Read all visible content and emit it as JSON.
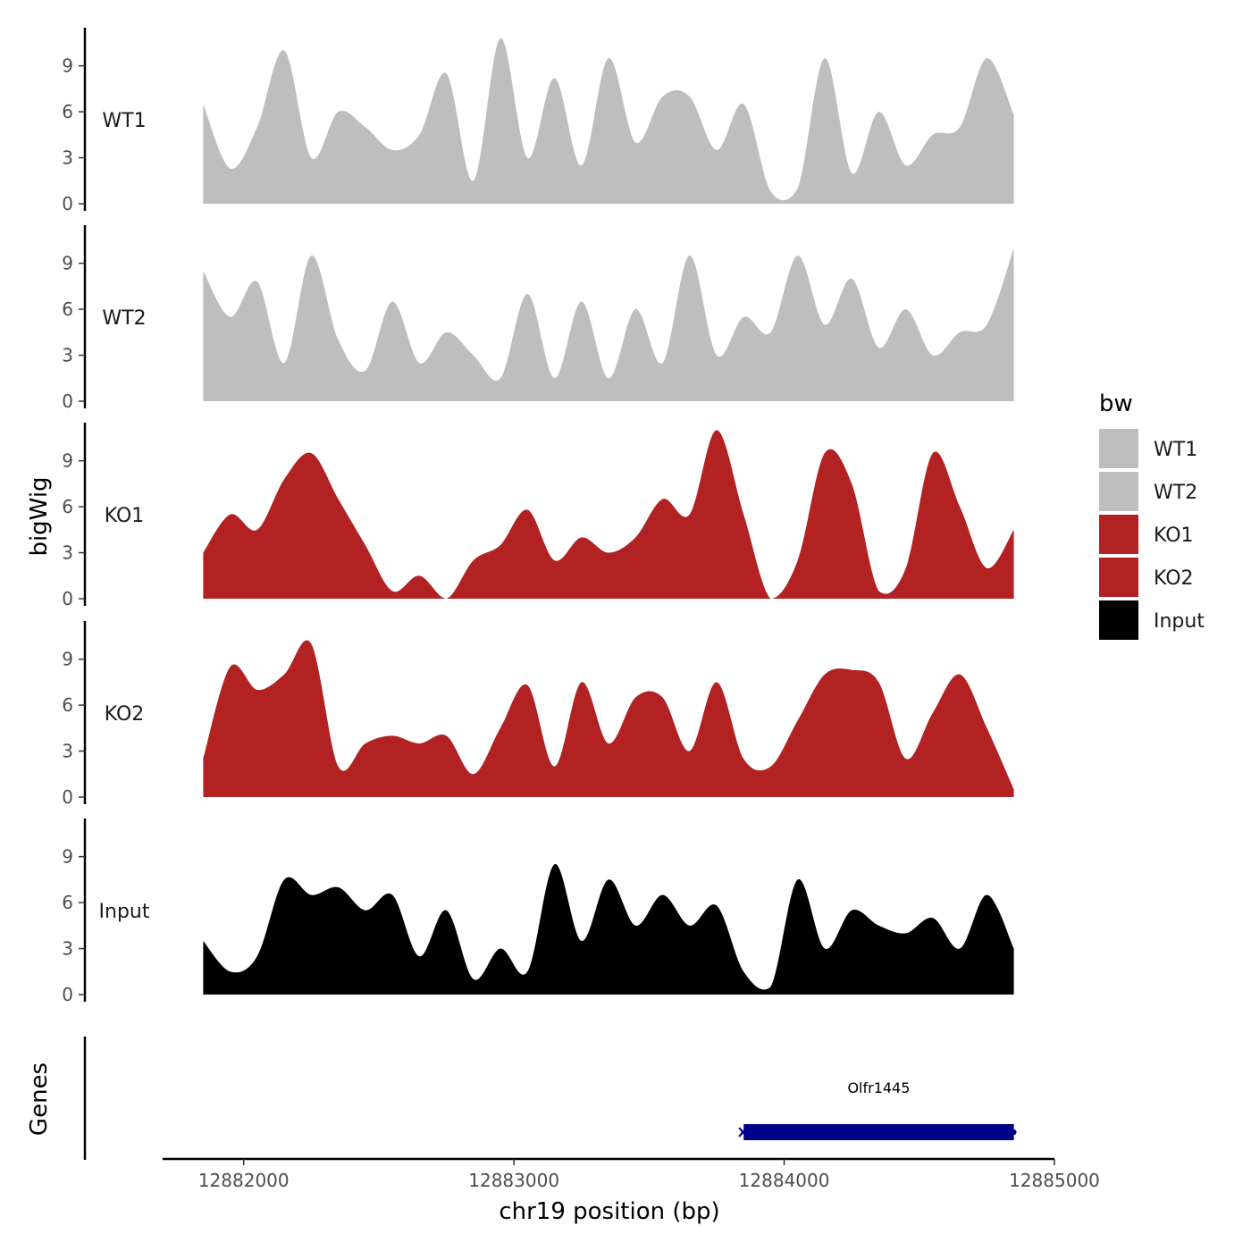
{
  "chart_data": {
    "type": "area",
    "chromosome": "chr19",
    "xlabel": "chr19 position (bp)",
    "ylabel": "bigWig",
    "genes_label": "Genes",
    "xlim": [
      12881700,
      12885000
    ],
    "xticks": [
      12882000,
      12883000,
      12884000,
      12885000
    ],
    "xtick_labels": [
      "12882000",
      "12883000",
      "12884000",
      "12885000"
    ],
    "ylim": [
      0,
      11.5
    ],
    "yticks": [
      0,
      3,
      6,
      9
    ],
    "ytick_labels": [
      "0",
      "3",
      "6",
      "9"
    ],
    "x": [
      12881850,
      12881950,
      12882050,
      12882150,
      12882250,
      12882350,
      12882450,
      12882550,
      12882650,
      12882750,
      12882850,
      12882950,
      12883050,
      12883150,
      12883250,
      12883350,
      12883450,
      12883550,
      12883650,
      12883750,
      12883850,
      12883950,
      12884050,
      12884150,
      12884250,
      12884350,
      12884450,
      12884550,
      12884650,
      12884750,
      12884850
    ],
    "series": [
      {
        "name": "WT1",
        "color": "#bebebe",
        "values": [
          6.5,
          2.3,
          5.0,
          10.0,
          3.0,
          6.0,
          5.0,
          3.5,
          4.5,
          8.5,
          1.5,
          10.8,
          3.0,
          8.2,
          2.5,
          9.5,
          4.0,
          7.0,
          7.0,
          3.5,
          6.5,
          0.8,
          1.0,
          9.5,
          2.0,
          6.0,
          2.5,
          4.5,
          5.0,
          9.5,
          5.8
        ]
      },
      {
        "name": "WT2",
        "color": "#bebebe",
        "values": [
          8.5,
          5.5,
          7.8,
          2.5,
          9.5,
          4.0,
          2.0,
          6.5,
          2.5,
          4.5,
          3.0,
          1.5,
          7.0,
          1.5,
          6.5,
          1.5,
          6.0,
          2.5,
          9.5,
          3.0,
          5.5,
          4.5,
          9.5,
          5.0,
          8.0,
          3.5,
          6.0,
          3.0,
          4.5,
          5.0,
          10.0
        ]
      },
      {
        "name": "KO1",
        "color": "#b22222",
        "values": [
          3.0,
          5.5,
          4.5,
          7.8,
          9.5,
          6.5,
          3.5,
          0.5,
          1.5,
          0.0,
          2.5,
          3.5,
          5.8,
          2.5,
          4.0,
          3.0,
          4.0,
          6.5,
          5.5,
          11.0,
          5.5,
          0.0,
          2.5,
          9.5,
          7.5,
          0.5,
          2.0,
          9.5,
          6.0,
          2.0,
          4.5
        ]
      },
      {
        "name": "KO2",
        "color": "#b22222",
        "values": [
          2.5,
          8.5,
          7.0,
          8.0,
          10.0,
          2.0,
          3.5,
          4.0,
          3.5,
          4.0,
          1.5,
          4.5,
          7.3,
          2.0,
          7.5,
          3.5,
          6.5,
          6.5,
          3.0,
          7.5,
          2.5,
          2.0,
          5.0,
          8.0,
          8.3,
          7.5,
          2.5,
          5.5,
          8.0,
          4.5,
          0.5
        ]
      },
      {
        "name": "Input",
        "color": "#000000",
        "values": [
          3.5,
          1.5,
          2.5,
          7.5,
          6.5,
          7.0,
          5.5,
          6.5,
          2.5,
          5.5,
          1.0,
          3.0,
          1.5,
          8.5,
          3.5,
          7.5,
          4.5,
          6.5,
          4.5,
          5.8,
          1.5,
          0.5,
          7.5,
          3.0,
          5.5,
          4.5,
          4.0,
          5.0,
          3.0,
          6.5,
          3.0
        ]
      }
    ],
    "legend": {
      "title": "bw",
      "position": "right",
      "entries": [
        {
          "label": "WT1",
          "color": "#bebebe"
        },
        {
          "label": "WT2",
          "color": "#bebebe"
        },
        {
          "label": "KO1",
          "color": "#b22222"
        },
        {
          "label": "KO2",
          "color": "#b22222"
        },
        {
          "label": "Input",
          "color": "#000000"
        }
      ]
    },
    "genes": [
      {
        "name": "Olfr1445",
        "start": 12883850,
        "end": 12884850,
        "strand": "-",
        "color": "#00008b"
      }
    ]
  }
}
